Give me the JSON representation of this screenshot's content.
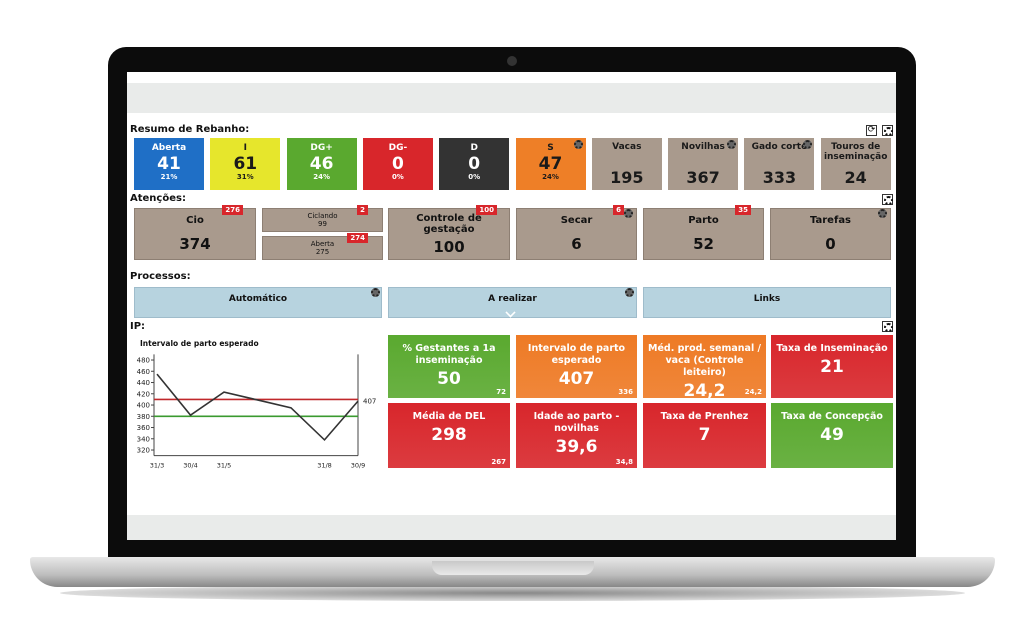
{
  "resumo": {
    "title": "Resumo de Rebanho:",
    "tiles": [
      {
        "label": "Aberta",
        "value": "41",
        "pct": "21%",
        "color": "#1f6fc6"
      },
      {
        "label": "I",
        "value": "61",
        "pct": "31%",
        "color": "#e6e62c"
      },
      {
        "label": "DG+",
        "value": "46",
        "pct": "24%",
        "color": "#5aa92f"
      },
      {
        "label": "DG-",
        "value": "0",
        "pct": "0%",
        "color": "#d8262b"
      },
      {
        "label": "D",
        "value": "0",
        "pct": "0%",
        "color": "#333333"
      },
      {
        "label": "S",
        "value": "47",
        "pct": "24%",
        "color": "#ee7f27"
      },
      {
        "label": "Vacas",
        "value": "195",
        "color": "#a99a8d"
      },
      {
        "label": "Novilhas",
        "value": "367",
        "color": "#a99a8d"
      },
      {
        "label": "Gado corte",
        "value": "333",
        "color": "#a99a8d"
      },
      {
        "label": "Touros de inseminação",
        "value": "24",
        "color": "#a99a8d"
      }
    ]
  },
  "atencoes": {
    "title": "Atenções:",
    "tiles": [
      {
        "label": "Cio",
        "value": "374",
        "badge": "276"
      },
      {
        "label": "Ciclando",
        "value": "99",
        "badge": "2"
      },
      {
        "label": "Aberta",
        "value": "275",
        "badge": "274"
      },
      {
        "label": "Controle de gestação",
        "value": "100",
        "badge": "100"
      },
      {
        "label": "Secar",
        "value": "6",
        "badge": "6"
      },
      {
        "label": "Parto",
        "value": "52",
        "badge": "35"
      },
      {
        "label": "Tarefas",
        "value": "0"
      }
    ]
  },
  "processos": {
    "title": "Processos:",
    "buttons": [
      "Automático",
      "A realizar",
      "Links"
    ]
  },
  "ip": {
    "title": "IP:",
    "chart": {
      "type": "line",
      "title": "Intervalo de parto esperado",
      "categories": [
        "31/3",
        "30/4",
        "31/5",
        null,
        null,
        "31/8",
        "30/9"
      ],
      "values": [
        455,
        382,
        423,
        409,
        395,
        338,
        407
      ],
      "color": "#333333",
      "ylim": [
        310,
        490
      ],
      "yticks": [
        320,
        340,
        360,
        380,
        400,
        420,
        440,
        460,
        480
      ],
      "reference_lines": [
        {
          "value": 410,
          "color": "#c0282b"
        },
        {
          "value": 380,
          "color": "#3a9a2f"
        }
      ]
    },
    "kpis": [
      {
        "label": "% Gestantes a 1a inseminação",
        "value": "50",
        "small": "72",
        "color": "#5aa92f"
      },
      {
        "label": "Intervalo de parto esperado",
        "value": "407",
        "small": "336",
        "color": "#ee7a25"
      },
      {
        "label": "Méd. prod. semanal / vaca (Controle leiteiro)",
        "value": "24,2",
        "small": "24,2",
        "color": "#ee7a25"
      },
      {
        "label": "Taxa de Inseminação",
        "value": "21",
        "color": "#d8262b"
      },
      {
        "label": "Média de DEL",
        "value": "298",
        "small": "267",
        "color": "#d8262b"
      },
      {
        "label": "Idade ao parto - novilhas",
        "value": "39,6",
        "small": "34,8",
        "color": "#d8262b"
      },
      {
        "label": "Taxa de Prenhez",
        "value": "7",
        "color": "#d8262b"
      },
      {
        "label": "Taxa de Concepção",
        "value": "49",
        "color": "#5aa92f"
      }
    ]
  }
}
